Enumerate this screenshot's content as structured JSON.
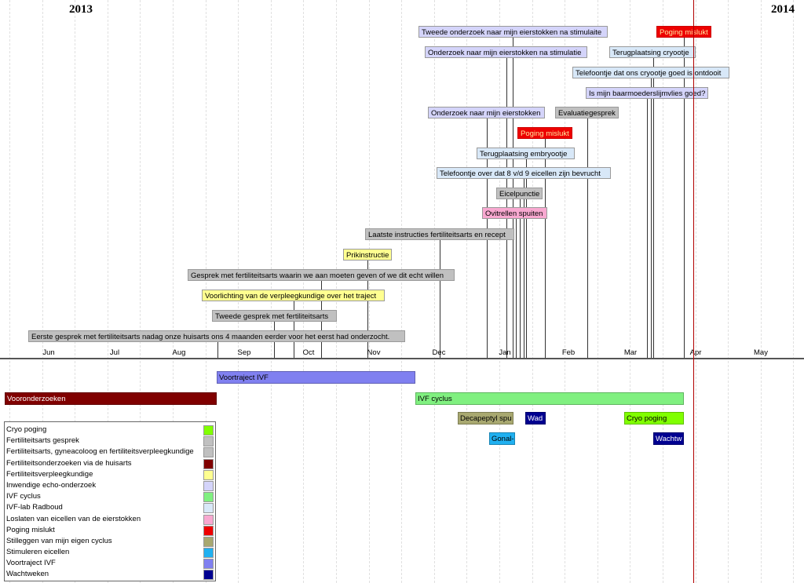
{
  "years": [
    "2013",
    "2014"
  ],
  "months": [
    "Jun",
    "Jul",
    "Aug",
    "Sep",
    "Oct",
    "Nov",
    "Dec",
    "Jan",
    "Feb",
    "Mar",
    "Apr",
    "May"
  ],
  "colors": {
    "cryo": "#80ff00",
    "arts": "#c0c0c0",
    "huisarts": "#800000",
    "verpleeg": "#ffff90",
    "echo": "#d4d4fa",
    "ivf": "#80f080",
    "lab": "#d8e8f8",
    "ovi": "#f8a8d0",
    "mislukt": "#ee0000",
    "stil": "#a8a870",
    "stim": "#20b0f0",
    "voor": "#8080f0",
    "wacht": "#000090"
  },
  "events": [
    {
      "label": "Tweede onderzoek naar mijn eierstokken na stimulaite",
      "category": "echo"
    },
    {
      "label": "Onderzoek naar mijn eierstokken na stimulatie",
      "category": "echo"
    },
    {
      "label": "Poging mislukt",
      "category": "mislukt"
    },
    {
      "label": "Terugplaatsing cryootje",
      "category": "lab"
    },
    {
      "label": "Telefoontje dat ons cryootje goed is ontdooit",
      "category": "lab"
    },
    {
      "label": "Is mijn baarmoederslijmvlies goed?",
      "category": "echo"
    },
    {
      "label": "Onderzoek naar mijn eierstokken",
      "category": "echo"
    },
    {
      "label": "Evaluatiegesprek",
      "category": "arts"
    },
    {
      "label": "Poging mislukt",
      "category": "mislukt"
    },
    {
      "label": "Terugplaatsing embryootje",
      "category": "lab"
    },
    {
      "label": "Telefoontje over dat 8 v/d 9 eicellen zijn bevrucht",
      "category": "lab"
    },
    {
      "label": "Eicelpunctie",
      "category": "arts"
    },
    {
      "label": "Ovitrellen spuiten",
      "category": "ovi"
    },
    {
      "label": "Laatste instructies fertiliteitsarts en recept",
      "category": "arts"
    },
    {
      "label": "Prikinstructie",
      "category": "verpleeg"
    },
    {
      "label": "Gesprek met fertiliteitsarts waarin we aan moeten geven of we dit echt willen",
      "category": "arts"
    },
    {
      "label": "Voorlichting van de verpleegkundige over het traject",
      "category": "verpleeg"
    },
    {
      "label": "Tweede gesprek met fertiliteitsarts",
      "category": "arts"
    },
    {
      "label": "Eerste gesprek met fertiliteitsarts nadag onze huisarts ons 4 maanden eerder voor het eerst had onderzocht.",
      "category": "arts"
    }
  ],
  "periods": [
    {
      "label": "Voortraject IVF",
      "category": "voor"
    },
    {
      "label": "Vooronderzoeken",
      "category": "huisarts"
    },
    {
      "label": "IVF cyclus",
      "category": "ivf"
    },
    {
      "label": "Decapeptyl spu",
      "category": "stil"
    },
    {
      "label": "Wad",
      "category": "wacht"
    },
    {
      "label": "Cryo poging",
      "category": "cryo"
    },
    {
      "label": "Gonal-",
      "category": "stim"
    },
    {
      "label": "Wachtw",
      "category": "wacht"
    }
  ],
  "legend": [
    {
      "label": "Cryo poging",
      "category": "cryo"
    },
    {
      "label": "Fertiliteitsarts gesprek",
      "category": "arts"
    },
    {
      "label": "Fertiliteitsarts, gyneacoloog en fertiliteitsverpleegkundige",
      "category": "arts"
    },
    {
      "label": "Fertiliteitsonderzoeken via de huisarts",
      "category": "huisarts"
    },
    {
      "label": "Fertiliteitsverpleegkundige",
      "category": "verpleeg"
    },
    {
      "label": "Inwendige echo-onderzoek",
      "category": "echo"
    },
    {
      "label": "IVF cyclus",
      "category": "ivf"
    },
    {
      "label": "IVF-lab Radboud",
      "category": "lab"
    },
    {
      "label": "Loslaten van eicellen van de eierstokken",
      "category": "ovi"
    },
    {
      "label": "Poging mislukt",
      "category": "mislukt"
    },
    {
      "label": "Stilleggen van mijn eigen cyclus",
      "category": "stil"
    },
    {
      "label": "Stimuleren eicellen",
      "category": "stim"
    },
    {
      "label": "Voortraject IVF",
      "category": "voor"
    },
    {
      "label": "Wachtweken",
      "category": "wacht"
    }
  ]
}
